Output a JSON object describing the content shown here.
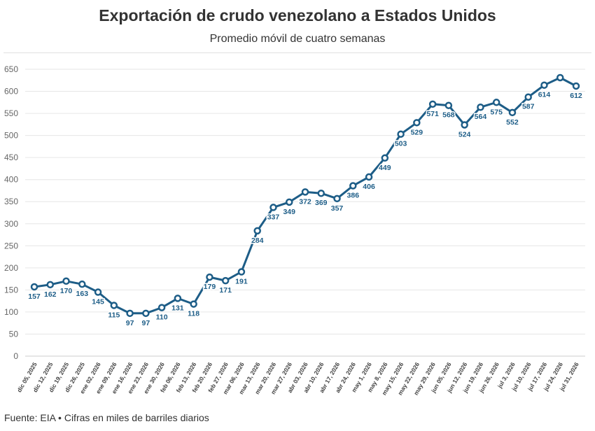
{
  "title": "Exportación de crudo venezolano a Estados Unidos",
  "subtitle": "Promedio móvil de cuatro semanas",
  "source": "Fuente: EIA • Cifras en miles de barriles diarios",
  "colors": {
    "line": "#1d5d87",
    "grid": "#e6e6e6",
    "label": "#1d5d87",
    "axis_text": "#666666"
  },
  "chart_data": {
    "type": "line",
    "title": "Exportación de crudo venezolano a Estados Unidos",
    "subtitle": "Promedio móvil de cuatro semanas",
    "xlabel": "",
    "ylabel": "",
    "ylim": [
      0,
      650
    ],
    "yticks": [
      0,
      50,
      100,
      150,
      200,
      250,
      300,
      350,
      400,
      450,
      500,
      550,
      600,
      650
    ],
    "grid": true,
    "categories": [
      "dic 05, 2025",
      "dic 12, 2025",
      "dic 19, 2025",
      "dic 26, 2025",
      "ene 02, 2026",
      "ene 09, 2026",
      "ene 16, 2026",
      "ene 23, 2026",
      "ene 30, 2026",
      "feb 06, 2026",
      "feb 13, 2026",
      "feb 20, 2026",
      "feb 27, 2026",
      "mar 06, 2026",
      "mar 13, 2026",
      "mar 20, 2026",
      "mar 27, 2026",
      "abr 03, 2026",
      "abr 10, 2026",
      "abr 17, 2026",
      "abr 24, 2026",
      "may 1, 2026",
      "may 8, 2026",
      "may 15, 2026",
      "may 22, 2026",
      "may 29, 2026",
      "jun 05, 2026",
      "jun 12, 2026",
      "jun 19, 2026",
      "jun 26, 2026",
      "jul 3, 2026",
      "jul 10, 2026",
      "jul 17, 2026",
      "jul 24, 2026",
      "jul 31, 2026"
    ],
    "values": [
      157,
      162,
      170,
      163,
      145,
      115,
      97,
      97,
      110,
      131,
      118,
      179,
      171,
      191,
      284,
      337,
      349,
      372,
      369,
      357,
      386,
      406,
      449,
      503,
      529,
      571,
      568,
      524,
      564,
      575,
      552,
      587,
      614,
      631,
      612
    ],
    "labels": [
      "157",
      "162",
      "170",
      "163",
      "145",
      "115",
      "97",
      "97",
      "110",
      "131",
      "118",
      "179",
      "171",
      "191",
      "284",
      "337",
      "349",
      "372",
      "369",
      "357",
      "386",
      "406",
      "449",
      "503",
      "529",
      "571",
      "568",
      "524",
      "564",
      "575",
      "552",
      "587",
      "614",
      "",
      "612"
    ]
  }
}
